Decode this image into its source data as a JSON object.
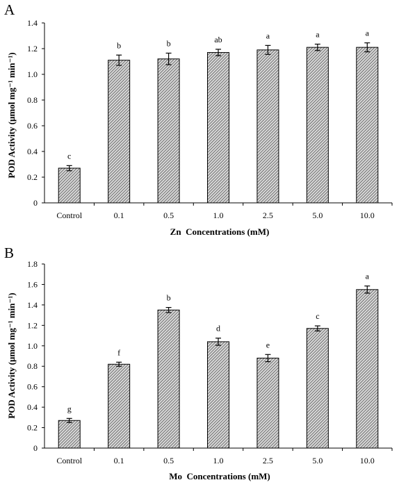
{
  "chart_data": [
    {
      "type": "bar",
      "panel_label": "A",
      "categories": [
        "Control",
        "0.1",
        "0.5",
        "1.0",
        "2.5",
        "5.0",
        "10.0"
      ],
      "values": [
        0.27,
        1.11,
        1.12,
        1.17,
        1.19,
        1.21,
        1.21
      ],
      "errors": [
        0.02,
        0.04,
        0.045,
        0.025,
        0.035,
        0.025,
        0.035
      ],
      "letters": [
        "c",
        "b",
        "b",
        "ab",
        "a",
        "a",
        "a"
      ],
      "xlabel": "Zn  Concentrations (mM)",
      "ylabel": "POD Activity (μmol mg⁻¹ min⁻¹)",
      "ylim": [
        0,
        1.4
      ],
      "yticks": [
        "0",
        "0.2",
        "0.4",
        "0.6",
        "0.8",
        "1.0",
        "1.2",
        "1.4"
      ],
      "grid": false,
      "bar_pattern": "diagonal hatch"
    },
    {
      "type": "bar",
      "panel_label": "B",
      "categories": [
        "Control",
        "0.1",
        "0.5",
        "1.0",
        "2.5",
        "5.0",
        "10.0"
      ],
      "values": [
        0.27,
        0.82,
        1.35,
        1.04,
        0.88,
        1.17,
        1.55
      ],
      "errors": [
        0.02,
        0.02,
        0.025,
        0.035,
        0.035,
        0.025,
        0.035
      ],
      "letters": [
        "g",
        "f",
        "b",
        "d",
        "e",
        "c",
        "a"
      ],
      "xlabel": "Mo  Concentrations (mM)",
      "ylabel": "POD Activity (μmol mg⁻¹ min⁻¹)",
      "ylim": [
        0,
        1.8
      ],
      "yticks": [
        "0",
        "0.2",
        "0.4",
        "0.6",
        "0.8",
        "1.0",
        "1.2",
        "1.4",
        "1.6",
        "1.8"
      ],
      "grid": false,
      "bar_pattern": "diagonal hatch"
    }
  ]
}
